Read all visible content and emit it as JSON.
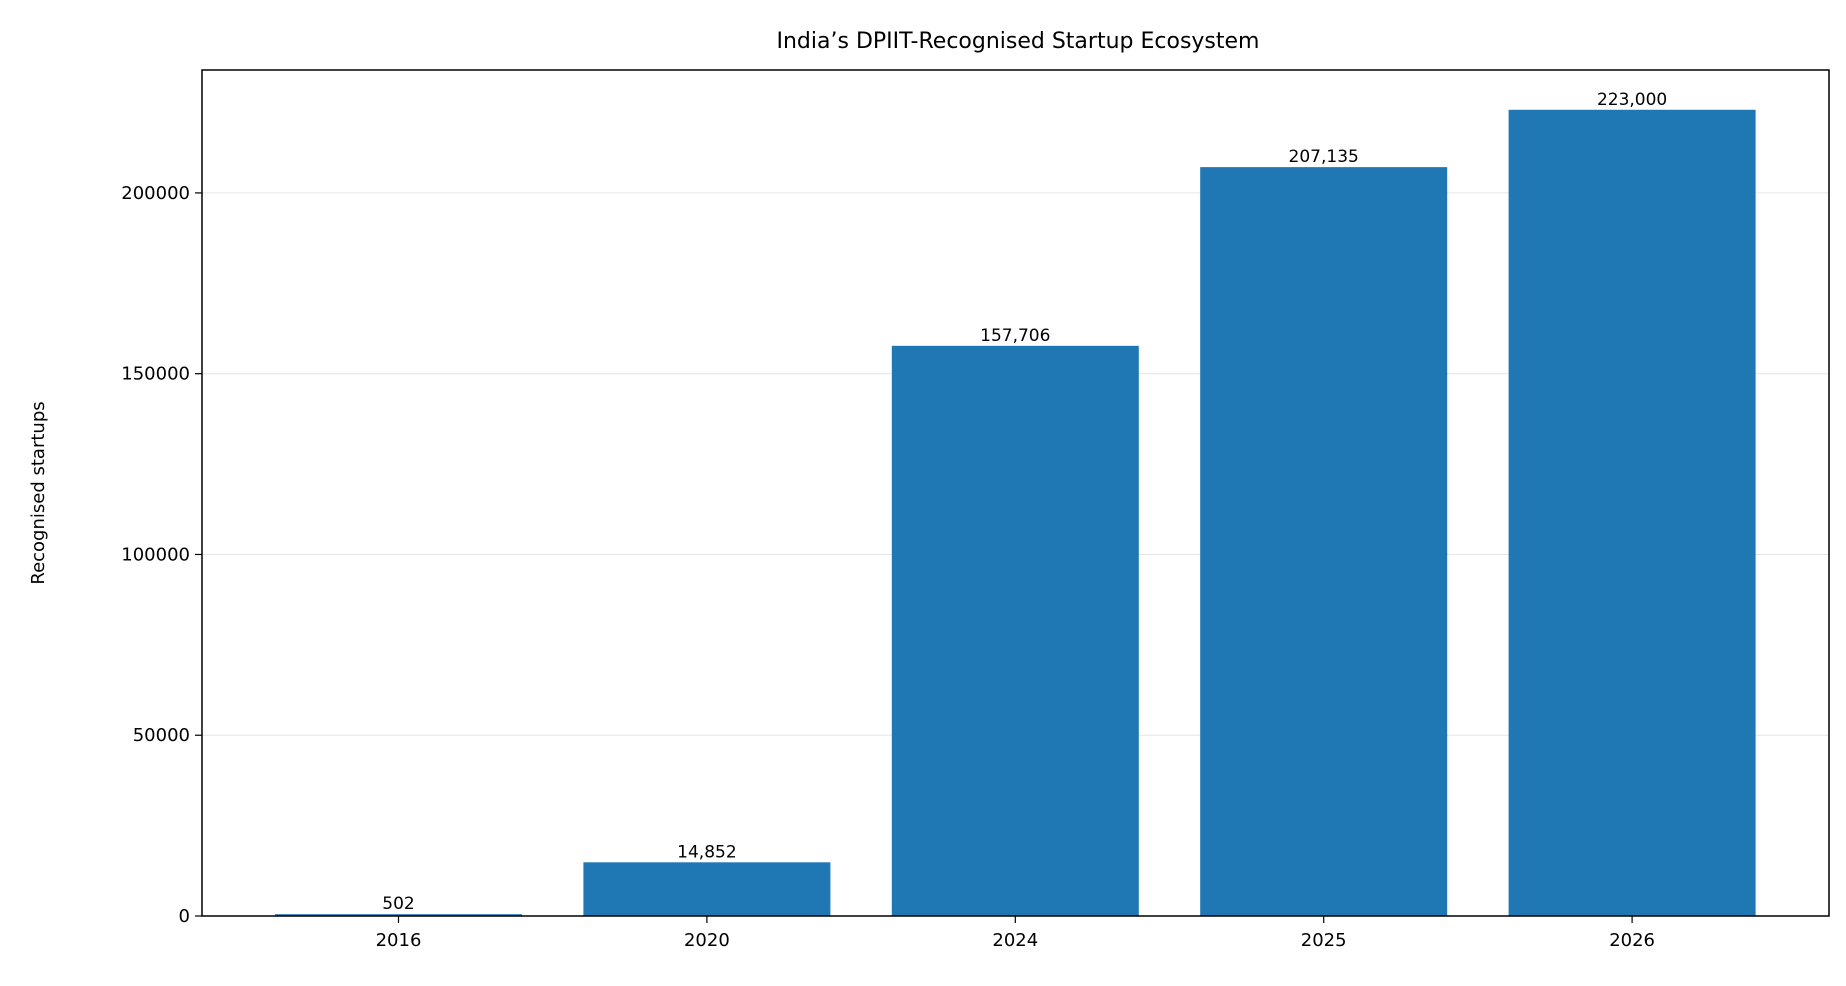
{
  "chart_data": {
    "type": "bar",
    "title": "India’s DPIIT-Recognised Startup Ecosystem",
    "xlabel": "",
    "ylabel": "Recognised startups",
    "categories": [
      "2016",
      "2020",
      "2024",
      "2025",
      "2026"
    ],
    "values": [
      502,
      14852,
      157706,
      207135,
      223000
    ],
    "data_labels": [
      "502",
      "14,852",
      "157,706",
      "207,135",
      "223,000"
    ],
    "yticks": [
      0,
      50000,
      100000,
      150000,
      200000
    ],
    "ytick_labels": [
      "0",
      "50000",
      "100000",
      "150000",
      "200000"
    ],
    "ylim": [
      0,
      234000
    ],
    "grid": "y-major",
    "bar_color": "#1f77b4"
  }
}
